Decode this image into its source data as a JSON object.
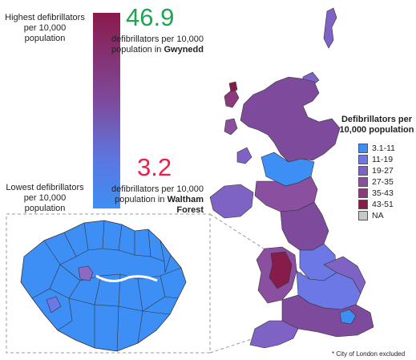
{
  "scale_bar": {
    "highest_label": "Highest defibrillators per 10,000 population",
    "lowest_label": "Lowest defibrillators per 10,000 population",
    "top_color": "#8b1a4c",
    "bottom_color": "#3d8ff5"
  },
  "highest": {
    "value": "46.9",
    "desc": "defibrillators per 10,000 population in",
    "place": "Gwynedd",
    "color": "#1aa653"
  },
  "lowest": {
    "value": "3.2",
    "desc": "defibrillators per 10,000 population in",
    "place": "Waltham Forest",
    "color": "#ea1f4c"
  },
  "legend": {
    "title": "Defibrillators per 10,000 population",
    "items": [
      {
        "label": "3.1-11",
        "color": "#3d8ff5"
      },
      {
        "label": "11-19",
        "color": "#6b78e6"
      },
      {
        "label": "19-27",
        "color": "#7f63c4"
      },
      {
        "label": "27-35",
        "color": "#8a4f9e"
      },
      {
        "label": "35-43",
        "color": "#8d3a7c"
      },
      {
        "label": "43-51",
        "color": "#851c4a"
      },
      {
        "label": "NA",
        "color": "#c8c8c8"
      }
    ]
  },
  "footnote": "* City of London excluded"
}
